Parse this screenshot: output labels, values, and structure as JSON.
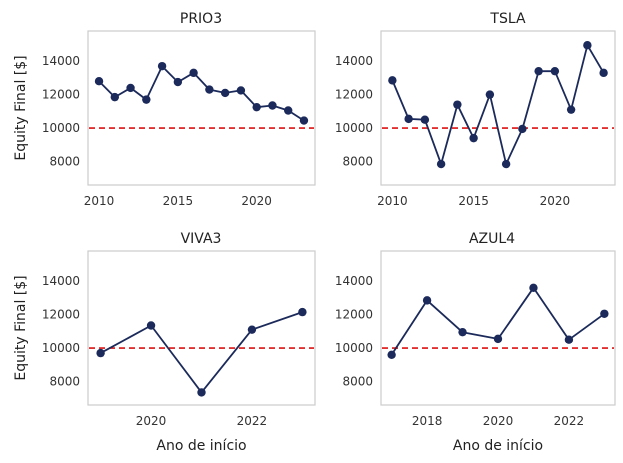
{
  "chart_data": [
    {
      "type": "line",
      "title": "PRIO3",
      "xlabel": "",
      "ylabel": "Equity Final [$]",
      "x": [
        2010,
        2011,
        2012,
        2013,
        2014,
        2015,
        2016,
        2017,
        2018,
        2019,
        2020,
        2021,
        2022,
        2023
      ],
      "values": [
        12800,
        11850,
        12400,
        11700,
        13700,
        12750,
        13300,
        12300,
        12100,
        12250,
        11250,
        11350,
        11050,
        10450
      ],
      "xlim": [
        2009.3,
        2023.7
      ],
      "ylim": [
        6600,
        15800
      ],
      "xticks": [
        2010,
        2015,
        2020
      ],
      "yticks": [
        8000,
        10000,
        12000,
        14000
      ],
      "reference_line": 10000,
      "grid": false
    },
    {
      "type": "line",
      "title": "TSLA",
      "xlabel": "",
      "ylabel": "",
      "x": [
        2010,
        2011,
        2012,
        2013,
        2014,
        2015,
        2016,
        2017,
        2018,
        2019,
        2020,
        2021,
        2022,
        2023
      ],
      "values": [
        12850,
        10550,
        10500,
        7850,
        11400,
        9400,
        12000,
        7850,
        9950,
        13400,
        13400,
        11100,
        14950,
        13300
      ],
      "xlim": [
        2009.3,
        2023.7
      ],
      "ylim": [
        6600,
        15800
      ],
      "xticks": [
        2010,
        2015,
        2020
      ],
      "yticks": [
        8000,
        10000,
        12000,
        14000
      ],
      "reference_line": 10000,
      "grid": false
    },
    {
      "type": "line",
      "title": "VIVA3",
      "xlabel": "Ano de início",
      "ylabel": "Equity Final [$]",
      "x": [
        2019,
        2020,
        2021,
        2022,
        2023
      ],
      "values": [
        9700,
        11350,
        7350,
        11100,
        12150
      ],
      "xlim": [
        2018.75,
        2023.25
      ],
      "ylim": [
        6600,
        15800
      ],
      "xticks": [
        2020,
        2022
      ],
      "yticks": [
        8000,
        10000,
        12000,
        14000
      ],
      "reference_line": 10000,
      "grid": false
    },
    {
      "type": "line",
      "title": "AZUL4",
      "xlabel": "Ano de início",
      "ylabel": "",
      "x": [
        2017,
        2018,
        2019,
        2020,
        2021,
        2022,
        2023
      ],
      "values": [
        9600,
        12850,
        10950,
        10550,
        13600,
        10500,
        12050
      ],
      "xlim": [
        2016.7,
        2023.3
      ],
      "ylim": [
        6600,
        15800
      ],
      "xticks": [
        2018,
        2020,
        2022
      ],
      "yticks": [
        8000,
        10000,
        12000,
        14000
      ],
      "reference_line": 10000,
      "grid": false
    }
  ],
  "colors": {
    "series": "#1b2a5a",
    "reference_line": "#dd1111"
  }
}
